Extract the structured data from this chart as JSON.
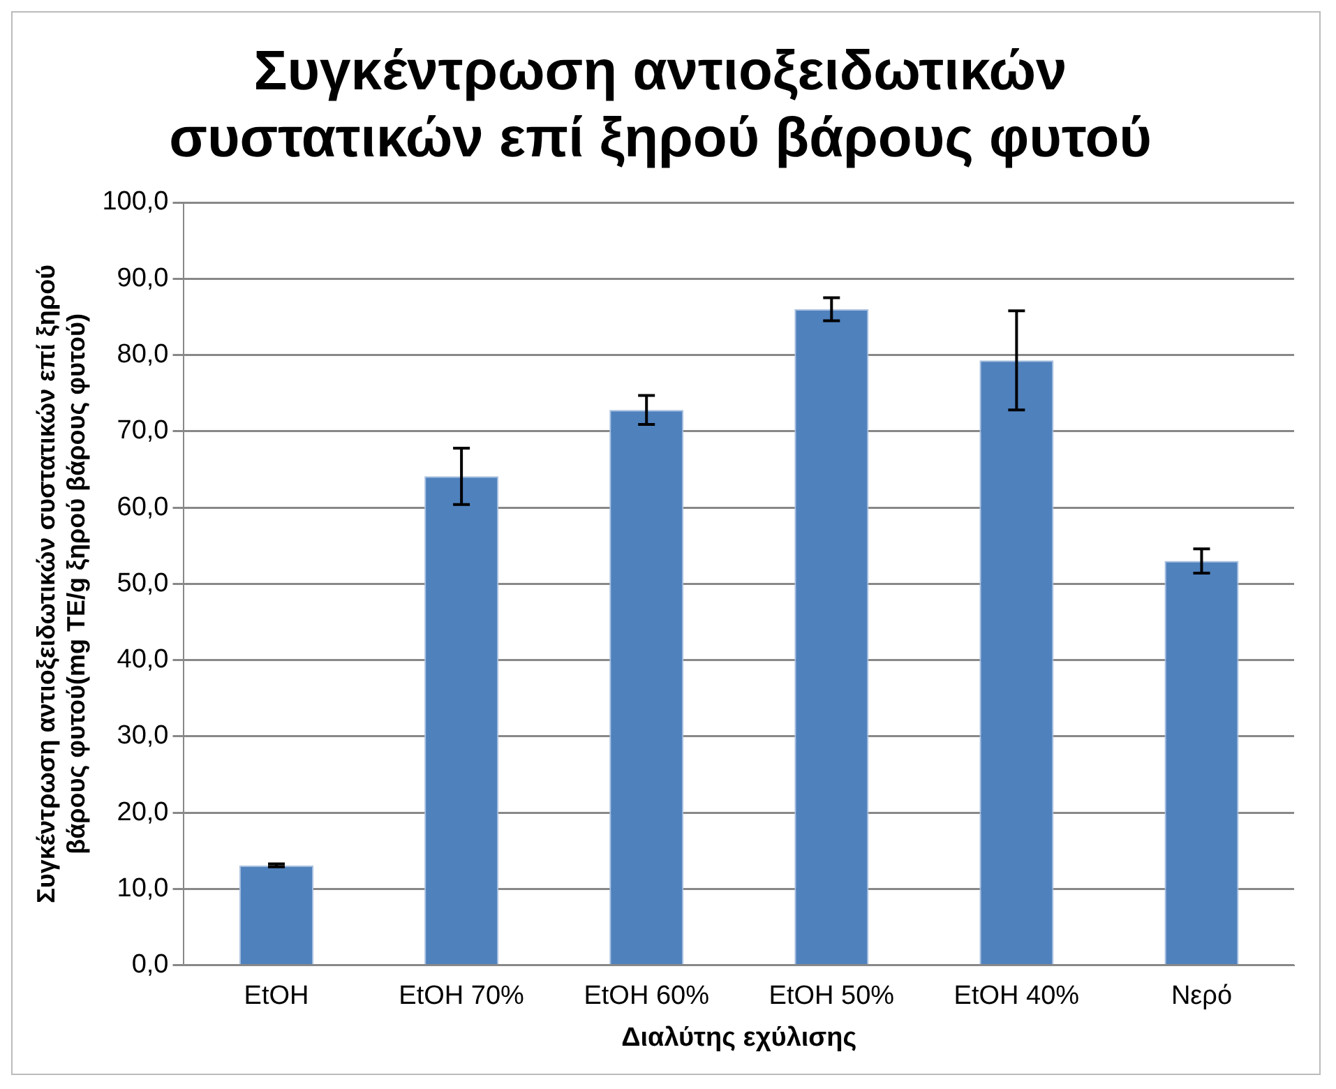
{
  "chart_data": {
    "type": "bar",
    "title": "Συγκέντρωση αντιοξειδωτικών\nσυστατικών επί ξηρού βάρους φυτού",
    "xlabel": "Διαλύτης εχύλισης",
    "ylabel": "Συγκέντρωση αντιοξειδωτικών συστατικών επί ξηρού\nβάρους φυτού(mg TE/g ξηρού βάρους φυτού)",
    "categories": [
      "EtOH",
      "EtOH 70%",
      "EtOH 60%",
      "EtOH 50%",
      "EtOH 40%",
      "Νερό"
    ],
    "values": [
      13.1,
      64.1,
      72.8,
      86.0,
      79.3,
      53.0
    ],
    "errors": [
      0.2,
      3.7,
      1.9,
      1.5,
      6.5,
      1.6
    ],
    "color": "#4f81bd",
    "ylim": [
      0,
      100
    ],
    "yticks": [
      {
        "value": 0,
        "label": "0,0"
      },
      {
        "value": 10,
        "label": "10,0"
      },
      {
        "value": 20,
        "label": "20,0"
      },
      {
        "value": 30,
        "label": "30,0"
      },
      {
        "value": 40,
        "label": "40,0"
      },
      {
        "value": 50,
        "label": "50,0"
      },
      {
        "value": 60,
        "label": "60,0"
      },
      {
        "value": 70,
        "label": "70,0"
      },
      {
        "value": 80,
        "label": "80,0"
      },
      {
        "value": 90,
        "label": "90,0"
      },
      {
        "value": 100,
        "label": "100,0"
      }
    ],
    "grid": "y",
    "legend": false
  }
}
